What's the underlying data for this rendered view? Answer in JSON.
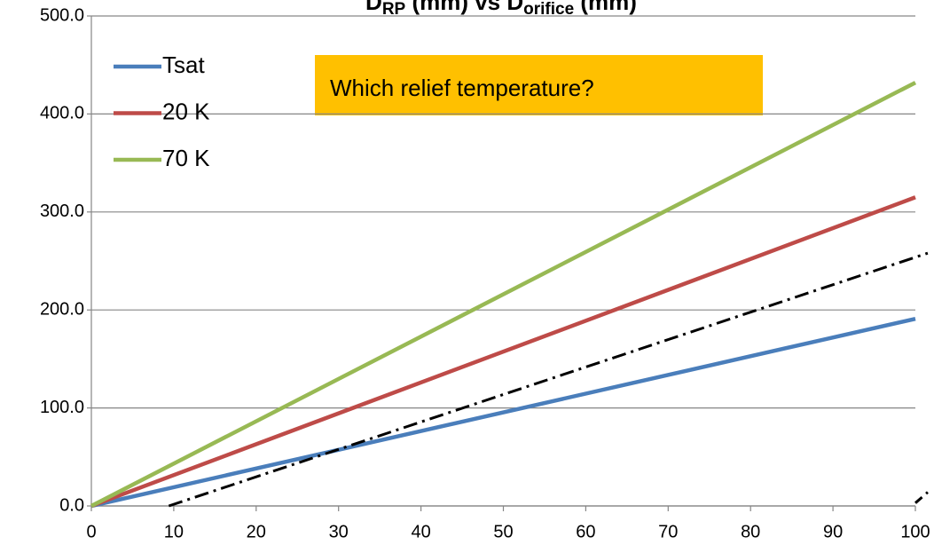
{
  "chart_data": {
    "type": "line",
    "title": [
      "D",
      "RP",
      " (mm) vs D",
      "orifice",
      " (mm)"
    ],
    "annotation": "Which relief temperature?",
    "xlim": [
      0,
      100
    ],
    "xticks": [
      0,
      10,
      20,
      30,
      40,
      50,
      60,
      70,
      80,
      90,
      100
    ],
    "ylim": [
      0,
      500
    ],
    "yticks": [
      {
        "value": 0,
        "label": "0.0"
      },
      {
        "value": 100,
        "label": "100.0"
      },
      {
        "value": 200,
        "label": "200.0"
      },
      {
        "value": 300,
        "label": "300.0"
      },
      {
        "value": 400,
        "label": "400.0"
      },
      {
        "value": 500,
        "label": "500.0"
      }
    ],
    "grid": true,
    "legend": "upper-left",
    "series": [
      {
        "name": "Tsat",
        "color": "#4a7ebb",
        "x": [
          0,
          100
        ],
        "values": [
          0,
          191
        ]
      },
      {
        "name": "20 K",
        "color": "#be4b48",
        "x": [
          0,
          100
        ],
        "values": [
          0,
          315
        ]
      },
      {
        "name": "70 K",
        "color": "#98b954",
        "x": [
          0,
          100
        ],
        "values": [
          0,
          432
        ]
      },
      {
        "color": "#000000",
        "dash": "dashdot",
        "x": [
          9.4,
          101.5
        ],
        "values": [
          0,
          258
        ]
      },
      {
        "color": "#000000",
        "dash": "dashed",
        "x": [
          100,
          101.5
        ],
        "values": [
          3,
          14
        ]
      }
    ]
  }
}
